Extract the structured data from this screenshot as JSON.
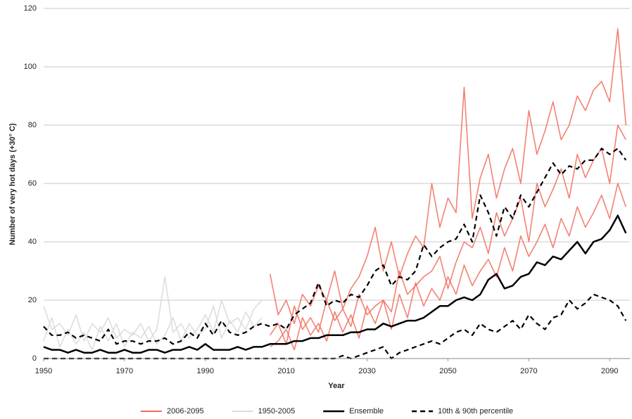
{
  "chart_data": {
    "type": "line",
    "x_label": "Year",
    "y_label": "Number of very hot days (+30° C)",
    "xlim": [
      1950,
      2095
    ],
    "xticks": [
      1950,
      1970,
      1990,
      2010,
      2030,
      2050,
      2070,
      2090
    ],
    "ylim": [
      0,
      120
    ],
    "yticks": [
      0,
      20,
      40,
      60,
      80,
      100,
      120
    ],
    "grid": true,
    "x": [
      1950,
      1952,
      1954,
      1956,
      1958,
      1960,
      1962,
      1964,
      1966,
      1968,
      1970,
      1972,
      1974,
      1976,
      1978,
      1980,
      1982,
      1984,
      1986,
      1988,
      1990,
      1992,
      1994,
      1996,
      1998,
      2000,
      2002,
      2004,
      2006,
      2008,
      2010,
      2012,
      2014,
      2016,
      2018,
      2020,
      2022,
      2024,
      2026,
      2028,
      2030,
      2032,
      2034,
      2036,
      2038,
      2040,
      2042,
      2044,
      2046,
      2048,
      2050,
      2052,
      2054,
      2056,
      2058,
      2060,
      2062,
      2064,
      2066,
      2068,
      2070,
      2072,
      2074,
      2076,
      2078,
      2080,
      2082,
      2084,
      2086,
      2088,
      2090,
      2092,
      2094
    ],
    "series": [
      {
        "name": "2006-2095",
        "color": "#f26b5b",
        "dash": false,
        "members": [
          [
            null,
            null,
            null,
            null,
            null,
            null,
            null,
            null,
            null,
            null,
            null,
            null,
            null,
            null,
            null,
            null,
            null,
            null,
            null,
            null,
            null,
            null,
            null,
            null,
            null,
            null,
            null,
            null,
            29,
            15,
            20,
            12,
            22,
            18,
            25,
            20,
            30,
            17,
            24,
            28,
            35,
            45,
            30,
            40,
            28,
            36,
            42,
            38,
            60,
            45,
            55,
            50,
            93,
            48,
            62,
            70,
            55,
            65,
            72,
            60,
            85,
            70,
            78,
            88,
            75,
            80,
            90,
            85,
            92,
            95,
            88,
            113,
            80
          ],
          [
            null,
            null,
            null,
            null,
            null,
            null,
            null,
            null,
            null,
            null,
            null,
            null,
            null,
            null,
            null,
            null,
            null,
            null,
            null,
            null,
            null,
            null,
            null,
            null,
            null,
            null,
            null,
            null,
            8,
            12,
            5,
            18,
            10,
            14,
            9,
            20,
            13,
            17,
            11,
            22,
            15,
            18,
            20,
            16,
            30,
            22,
            25,
            28,
            30,
            35,
            24,
            33,
            40,
            38,
            45,
            36,
            50,
            42,
            48,
            55,
            40,
            60,
            52,
            58,
            65,
            55,
            70,
            62,
            68,
            72,
            60,
            80,
            75
          ],
          [
            null,
            null,
            null,
            null,
            null,
            null,
            null,
            null,
            null,
            null,
            null,
            null,
            null,
            null,
            null,
            null,
            null,
            null,
            null,
            null,
            null,
            null,
            null,
            null,
            null,
            null,
            null,
            null,
            4,
            6,
            10,
            3,
            14,
            8,
            12,
            6,
            16,
            9,
            15,
            7,
            18,
            12,
            20,
            10,
            22,
            14,
            26,
            18,
            24,
            20,
            28,
            22,
            32,
            25,
            30,
            34,
            28,
            38,
            30,
            42,
            35,
            40,
            46,
            38,
            48,
            42,
            52,
            45,
            50,
            56,
            48,
            60,
            52
          ]
        ]
      },
      {
        "name": "1950-2005",
        "color": "#dddddd",
        "dash": false,
        "members": [
          [
            18,
            10,
            12,
            8,
            15,
            6,
            12,
            9,
            14,
            7,
            10,
            8,
            12,
            6,
            10,
            28,
            9,
            12,
            7,
            10,
            15,
            9,
            20,
            12,
            14,
            10,
            17,
            20,
            null,
            null,
            null,
            null,
            null,
            null,
            null,
            null,
            null,
            null,
            null,
            null,
            null,
            null,
            null,
            null,
            null,
            null,
            null,
            null,
            null,
            null,
            null,
            null,
            null,
            null,
            null,
            null,
            null,
            null,
            null,
            null,
            null,
            null,
            null,
            null,
            null,
            null,
            null,
            null,
            null,
            null,
            null,
            null,
            null
          ],
          [
            6,
            14,
            4,
            10,
            5,
            9,
            3,
            11,
            6,
            12,
            4,
            9,
            7,
            11,
            5,
            8,
            14,
            6,
            12,
            8,
            10,
            18,
            7,
            13,
            9,
            16,
            11,
            14,
            null,
            null,
            null,
            null,
            null,
            null,
            null,
            null,
            null,
            null,
            null,
            null,
            null,
            null,
            null,
            null,
            null,
            null,
            null,
            null,
            null,
            null,
            null,
            null,
            null,
            null,
            null,
            null,
            null,
            null,
            null,
            null,
            null,
            null,
            null,
            null,
            null,
            null,
            null,
            null,
            null,
            null,
            null,
            null,
            null
          ]
        ]
      },
      {
        "name": "Ensemble",
        "color": "#000000",
        "dash": false,
        "members": [
          [
            4,
            3,
            3,
            2,
            3,
            2,
            2,
            3,
            2,
            2,
            3,
            2,
            2,
            3,
            3,
            2,
            3,
            3,
            4,
            3,
            5,
            3,
            3,
            3,
            4,
            3,
            4,
            4,
            5,
            5,
            5,
            6,
            6,
            7,
            7,
            8,
            8,
            8,
            9,
            9,
            10,
            10,
            12,
            11,
            12,
            13,
            13,
            14,
            16,
            18,
            18,
            20,
            21,
            20,
            22,
            27,
            29,
            24,
            25,
            28,
            29,
            33,
            32,
            35,
            34,
            37,
            40,
            36,
            40,
            41,
            44,
            49,
            43
          ]
        ]
      },
      {
        "name": "10th & 90th percentile",
        "color": "#000000",
        "dash": true,
        "members": [
          [
            11,
            8,
            8,
            9,
            7,
            8,
            7,
            6,
            10,
            5,
            6,
            6,
            5,
            6,
            6,
            7,
            5,
            6,
            9,
            7,
            12,
            8,
            13,
            9,
            8,
            9,
            11,
            12,
            11,
            12,
            10,
            15,
            17,
            19,
            26,
            18,
            20,
            19,
            22,
            21,
            25,
            30,
            32,
            25,
            28,
            27,
            30,
            39,
            35,
            38,
            40,
            41,
            46,
            40,
            56,
            50,
            42,
            52,
            48,
            56,
            52,
            57,
            62,
            67,
            63,
            66,
            65,
            68,
            68,
            72,
            70,
            72,
            68
          ],
          [
            0,
            0,
            0,
            0,
            0,
            0,
            0,
            0,
            0,
            0,
            0,
            0,
            0,
            0,
            0,
            0,
            0,
            0,
            0,
            0,
            0,
            0,
            0,
            0,
            0,
            0,
            0,
            0,
            0,
            0,
            0,
            0,
            0,
            0,
            0,
            0,
            0,
            1,
            0,
            1,
            2,
            3,
            4,
            0,
            2,
            3,
            4,
            5,
            6,
            5,
            7,
            9,
            10,
            8,
            12,
            10,
            9,
            11,
            13,
            10,
            15,
            12,
            10,
            14,
            15,
            20,
            17,
            19,
            22,
            21,
            20,
            18,
            13
          ]
        ]
      }
    ]
  }
}
